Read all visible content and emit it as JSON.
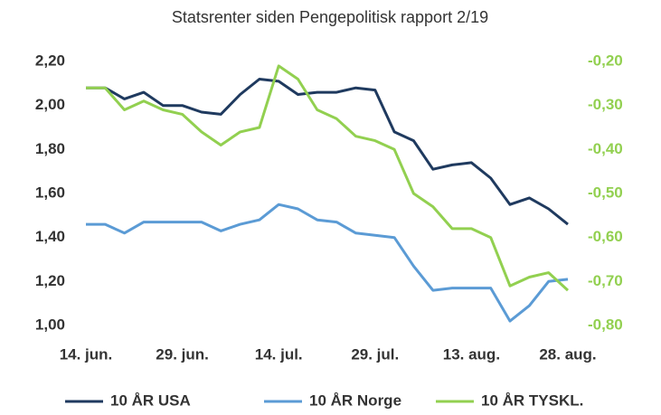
{
  "chart_data": {
    "type": "line",
    "title": "Statsrenter siden Pengepolitisk rapport 2/19",
    "categories": [
      "14. jun.",
      null,
      null,
      null,
      null,
      "29. jun.",
      null,
      null,
      null,
      null,
      "14. jul.",
      null,
      null,
      null,
      null,
      "29. jul.",
      null,
      null,
      null,
      null,
      "13. aug.",
      null,
      null,
      null,
      null,
      "28. aug."
    ],
    "series": [
      {
        "name": "10 ÅR USA",
        "color": "#1f3a5f",
        "axis": "y",
        "values": [
          2.08,
          2.08,
          2.03,
          2.06,
          2.0,
          2.0,
          1.97,
          1.96,
          2.05,
          2.12,
          2.11,
          2.05,
          2.06,
          2.06,
          2.08,
          2.07,
          1.88,
          1.84,
          1.71,
          1.73,
          1.74,
          1.67,
          1.55,
          1.58,
          1.53,
          1.46
        ]
      },
      {
        "name": "10 ÅR Norge",
        "color": "#5b9bd5",
        "axis": "y",
        "values": [
          1.46,
          1.46,
          1.42,
          1.47,
          1.47,
          1.47,
          1.47,
          1.43,
          1.46,
          1.48,
          1.55,
          1.53,
          1.48,
          1.47,
          1.42,
          1.41,
          1.4,
          1.27,
          1.16,
          1.17,
          1.17,
          1.17,
          1.02,
          1.09,
          1.2,
          1.21
        ]
      },
      {
        "name": "10 ÅR TYSKL.",
        "color": "#92d050",
        "axis": "y2",
        "values": [
          -0.26,
          -0.26,
          -0.31,
          -0.29,
          -0.31,
          -0.32,
          -0.36,
          -0.39,
          -0.36,
          -0.35,
          -0.21,
          -0.24,
          -0.31,
          -0.33,
          -0.37,
          -0.38,
          -0.4,
          -0.5,
          -0.53,
          -0.58,
          -0.58,
          -0.6,
          -0.71,
          -0.69,
          -0.68,
          -0.72
        ]
      }
    ],
    "ylim": [
      1.0,
      2.2
    ],
    "yticks": [
      {
        "value": 1.0,
        "label": "1,00"
      },
      {
        "value": 1.2,
        "label": "1,20"
      },
      {
        "value": 1.4,
        "label": "1,40"
      },
      {
        "value": 1.6,
        "label": "1,60"
      },
      {
        "value": 1.8,
        "label": "1,80"
      },
      {
        "value": 2.0,
        "label": "2,00"
      },
      {
        "value": 2.2,
        "label": "2,20"
      }
    ],
    "y2lim": [
      -0.8,
      -0.2
    ],
    "y2ticks": [
      {
        "value": -0.8,
        "label": "-0,80"
      },
      {
        "value": -0.7,
        "label": "-0,70"
      },
      {
        "value": -0.6,
        "label": "-0,60"
      },
      {
        "value": -0.5,
        "label": "-0,50"
      },
      {
        "value": -0.4,
        "label": "-0,40"
      },
      {
        "value": -0.3,
        "label": "-0,30"
      },
      {
        "value": -0.2,
        "label": "-0,20"
      }
    ],
    "y2tick_color": "#92d050",
    "legend": "bottom"
  }
}
